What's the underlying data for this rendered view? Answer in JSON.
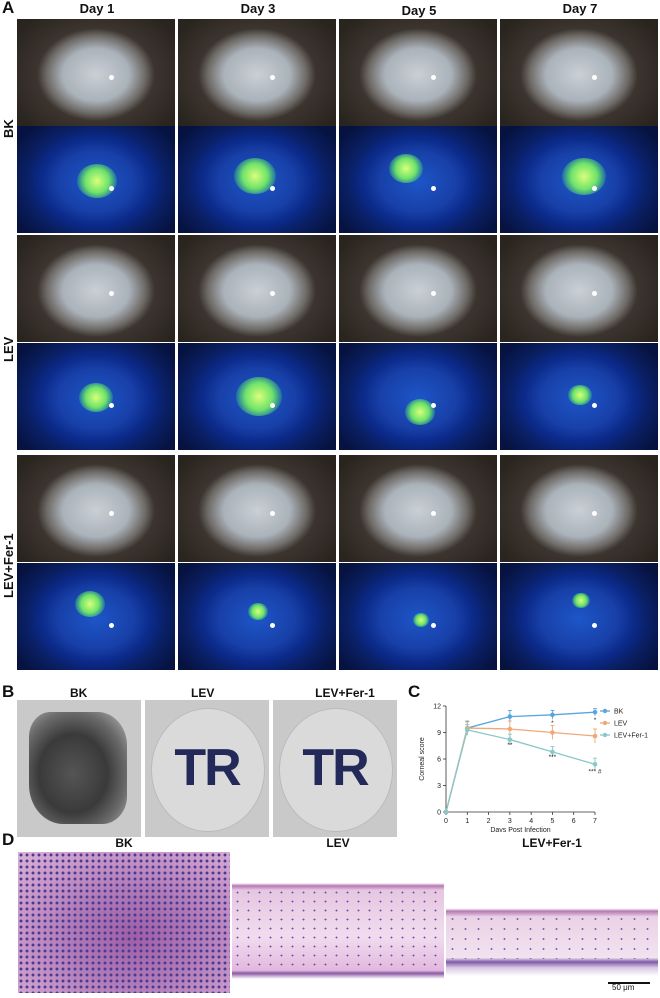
{
  "panels": {
    "a": "A",
    "b": "B",
    "c": "C",
    "d": "D"
  },
  "panel_a": {
    "days": [
      "Day 1",
      "Day 3",
      "Day 5",
      "Day 7"
    ],
    "groups": [
      "BK",
      "LEV",
      "LEV+Fer-1"
    ]
  },
  "panel_b": {
    "labels": [
      "BK",
      "LEV",
      "LEV+Fer-1"
    ],
    "disc_letters": "TR"
  },
  "panel_d": {
    "labels": [
      "BK",
      "LEV",
      "LEV+Fer-1"
    ],
    "scale_bar": "50 μm"
  },
  "chart_data": {
    "type": "line",
    "ylabel": "Corneal score",
    "xlabel": "Days Post Infection",
    "xlim": [
      0,
      7
    ],
    "ylim": [
      0,
      12
    ],
    "x_ticks": [
      0,
      1,
      2,
      3,
      4,
      5,
      6,
      7
    ],
    "y_ticks": [
      0,
      3,
      6,
      9,
      12
    ],
    "legend_position": "top-right",
    "colors": {
      "BK": "#5aa6dc",
      "LEV": "#f0a878",
      "LEV+Fer-1": "#88c8c8"
    },
    "series": [
      {
        "name": "BK",
        "x": [
          0,
          1,
          3,
          5,
          7
        ],
        "values": [
          0,
          9.5,
          10.8,
          11.0,
          11.3
        ],
        "err": [
          0,
          0.8,
          0.7,
          0.5,
          0.4
        ]
      },
      {
        "name": "LEV",
        "x": [
          0,
          1,
          3,
          5,
          7
        ],
        "values": [
          0,
          9.5,
          9.4,
          9.0,
          8.6
        ],
        "err": [
          0,
          0.7,
          0.9,
          0.8,
          0.8
        ]
      },
      {
        "name": "LEV+Fer-1",
        "x": [
          0,
          1,
          3,
          5,
          7
        ],
        "values": [
          0,
          9.3,
          8.2,
          6.8,
          5.4
        ],
        "err": [
          0,
          0.6,
          0.6,
          0.6,
          0.7
        ]
      }
    ],
    "annotations": [
      {
        "x": 3,
        "y": 7.6,
        "text": "**"
      },
      {
        "x": 5,
        "y": 6.2,
        "text": "***"
      },
      {
        "x": 5,
        "y": 10.1,
        "text": "*"
      },
      {
        "x": 7,
        "y": 10.4,
        "text": "*"
      },
      {
        "x": 7,
        "y": 4.6,
        "text": "*** #"
      }
    ]
  }
}
